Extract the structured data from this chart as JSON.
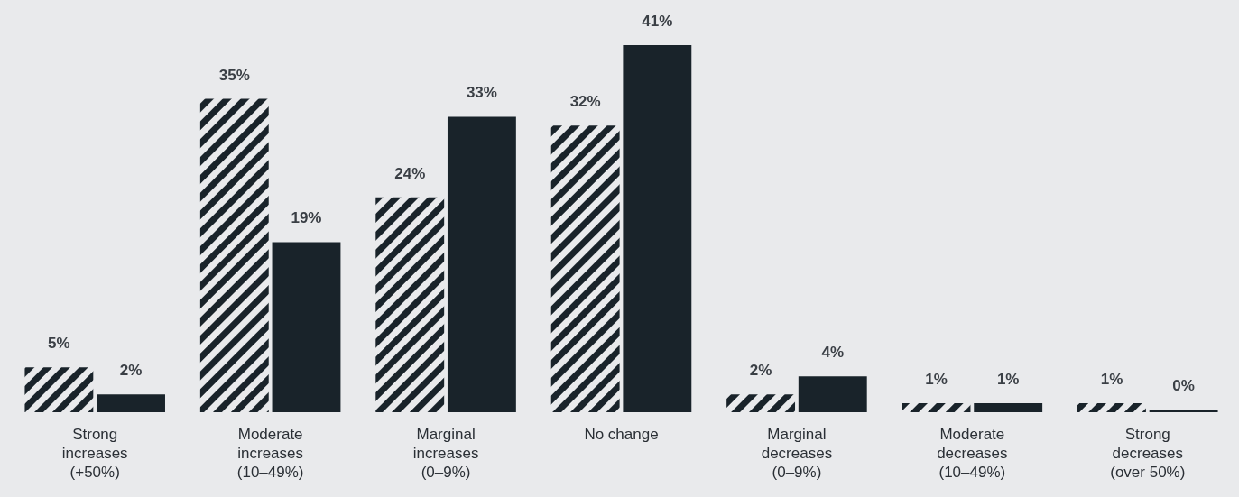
{
  "chart_data": {
    "type": "bar",
    "categories": [
      "Strong\nincreases\n(+50%)",
      "Moderate\nincreases\n(10–49%)",
      "Marginal\nincreases\n(0–9%)",
      "No change",
      "Marginal\ndecreases\n(0–9%)",
      "Moderate\ndecreases\n(10–49%)",
      "Strong\ndecreases\n(over 50%)"
    ],
    "series": [
      {
        "color": "#19232a",
        "values": [
          5,
          35,
          24,
          32,
          2,
          1,
          1
        ],
        "value_labels": [
          "5%",
          "35%",
          "24%",
          "32%",
          "2%",
          "1%",
          "1%"
        ]
      },
      {
        "color": "#19232a",
        "values": [
          2,
          19,
          33,
          41,
          4,
          1,
          0.3
        ],
        "value_labels": [
          "2%",
          "19%",
          "33%",
          "41%",
          "4%",
          "1%",
          "0%"
        ]
      }
    ]
  }
}
